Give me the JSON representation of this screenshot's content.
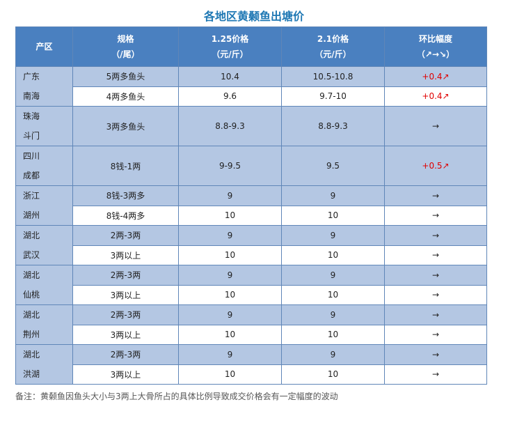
{
  "title": "各地区黄颡鱼出塘价",
  "headers": {
    "region": "产区",
    "spec_line1": "规格",
    "spec_line2": "（/尾）",
    "p1_line1": "1.25价格",
    "p1_line2": "（元/斤）",
    "p2_line1": "2.1价格",
    "p2_line2": "（元/斤）",
    "change_line1": "环比幅度",
    "change_line2": "（↗→↘）"
  },
  "regions": [
    {
      "name_line1": "广东",
      "name_line2": "南海",
      "rows": [
        {
          "spec": "5两多鱼头",
          "p1": "10.4",
          "p2": "10.5-10.8",
          "change": "+0.4↗",
          "trend": "up"
        },
        {
          "spec": "4两多鱼头",
          "p1": "9.6",
          "p2": "9.7-10",
          "change": "+0.4↗",
          "trend": "up"
        }
      ]
    },
    {
      "name_line1": "珠海",
      "name_line2": "斗门",
      "rows": [
        {
          "spec": "3两多鱼头",
          "p1": "8.8-9.3",
          "p2": "8.8-9.3",
          "change": "→",
          "trend": "flat"
        }
      ]
    },
    {
      "name_line1": "四川",
      "name_line2": "成都",
      "rows": [
        {
          "spec": "8钱-1两",
          "p1": "9-9.5",
          "p2": "9.5",
          "change": "+0.5↗",
          "trend": "up"
        }
      ]
    },
    {
      "name_line1": "浙江",
      "name_line2": "湖州",
      "rows": [
        {
          "spec": "8钱-3两多",
          "p1": "9",
          "p2": "9",
          "change": "→",
          "trend": "flat"
        },
        {
          "spec": "8钱-4两多",
          "p1": "10",
          "p2": "10",
          "change": "→",
          "trend": "flat"
        }
      ]
    },
    {
      "name_line1": "湖北",
      "name_line2": "武汉",
      "rows": [
        {
          "spec": "2两-3两",
          "p1": "9",
          "p2": "9",
          "change": "→",
          "trend": "flat"
        },
        {
          "spec": "3两以上",
          "p1": "10",
          "p2": "10",
          "change": "→",
          "trend": "flat"
        }
      ]
    },
    {
      "name_line1": "湖北",
      "name_line2": "仙桃",
      "rows": [
        {
          "spec": "2两-3两",
          "p1": "9",
          "p2": "9",
          "change": "→",
          "trend": "flat"
        },
        {
          "spec": "3两以上",
          "p1": "10",
          "p2": "10",
          "change": "→",
          "trend": "flat"
        }
      ]
    },
    {
      "name_line1": "湖北",
      "name_line2": "荆州",
      "rows": [
        {
          "spec": "2两-3两",
          "p1": "9",
          "p2": "9",
          "change": "→",
          "trend": "flat"
        },
        {
          "spec": "3两以上",
          "p1": "10",
          "p2": "10",
          "change": "→",
          "trend": "flat"
        }
      ]
    },
    {
      "name_line1": "湖北",
      "name_line2": "洪湖",
      "rows": [
        {
          "spec": "2两-3两",
          "p1": "9",
          "p2": "9",
          "change": "→",
          "trend": "flat"
        },
        {
          "spec": "3两以上",
          "p1": "10",
          "p2": "10",
          "change": "→",
          "trend": "flat"
        }
      ]
    }
  ],
  "note": "备注：黄颡鱼因鱼头大小与3两上大骨所占的具体比例导致成交价格会有一定幅度的波动",
  "colors": {
    "title": "#1f78b4",
    "header_bg": "#4a80c0",
    "band_bg": "#b4c7e3",
    "border": "#5f86b8",
    "up": "#e00000"
  }
}
